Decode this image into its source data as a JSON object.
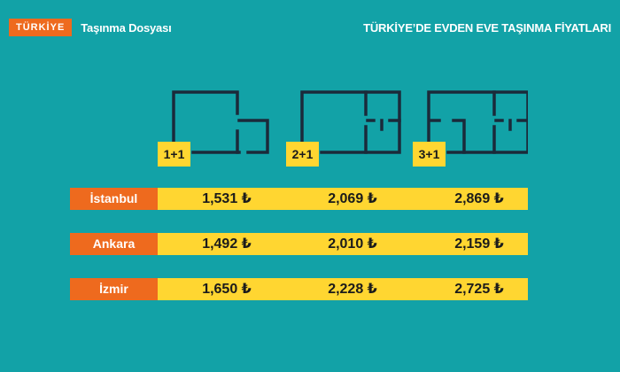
{
  "brand": {
    "badge": "TÜRKİYE",
    "title": "Taşınma Dosyası"
  },
  "page_title": "TÜRKİYE’DE EVDEN EVE TAŞINMA FİYATLARI",
  "colors": {
    "background": "#12A2A7",
    "accent_orange": "#EE6A1E",
    "accent_yellow": "#FFD631",
    "plan_stroke": "#1B2A3A"
  },
  "plans": [
    {
      "label": "1+1",
      "icon": "floorplan-1-1-icon"
    },
    {
      "label": "2+1",
      "icon": "floorplan-2-1-icon"
    },
    {
      "label": "3+1",
      "icon": "floorplan-3-1-icon"
    }
  ],
  "rows": [
    {
      "city": "İstanbul",
      "prices": [
        "1,531 ₺",
        "2,069 ₺",
        "2,869 ₺"
      ]
    },
    {
      "city": "Ankara",
      "prices": [
        "1,492 ₺",
        "2,010 ₺",
        "2,159 ₺"
      ]
    },
    {
      "city": "İzmir",
      "prices": [
        "1,650 ₺",
        "2,228 ₺",
        "2,725 ₺"
      ]
    }
  ]
}
